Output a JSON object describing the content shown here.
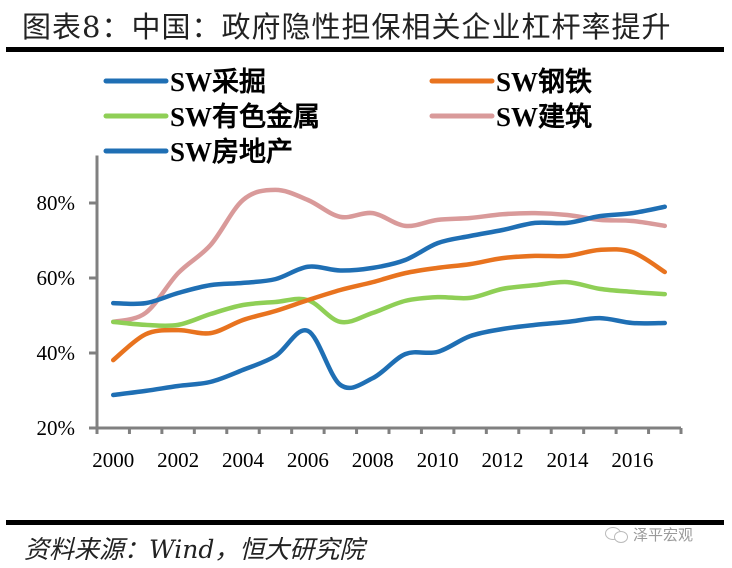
{
  "header": {
    "title": "图表8：中国：政府隐性担保相关企业杠杆率提升"
  },
  "footer": {
    "source": "资料来源：Wind，恒大研究院",
    "watermark_icon": "wechat-icon",
    "watermark": "泽平宏观"
  },
  "chart_data": {
    "type": "line",
    "title": "中国：政府隐性担保相关企业杠杆率提升",
    "xlabel": "",
    "ylabel": "",
    "x": [
      2000,
      2001,
      2002,
      2003,
      2004,
      2005,
      2006,
      2007,
      2008,
      2009,
      2010,
      2011,
      2012,
      2013,
      2014,
      2015,
      2016,
      2017
    ],
    "x_tick_labels": [
      "2000",
      "2002",
      "2004",
      "2006",
      "2008",
      "2010",
      "2012",
      "2014",
      "2016"
    ],
    "y_tick_labels": [
      "20%",
      "40%",
      "60%",
      "80%"
    ],
    "y_ticks": [
      20,
      40,
      60,
      80
    ],
    "ylim": [
      20,
      90
    ],
    "grid": false,
    "legend_position": "top",
    "series": [
      {
        "name": "SW采掘",
        "color": "#1f6fb4",
        "values": [
          53.3,
          53.3,
          56.0,
          58.1,
          58.7,
          59.7,
          63.0,
          62.0,
          62.7,
          64.8,
          69.3,
          71.2,
          72.8,
          74.7,
          74.7,
          76.5,
          77.3,
          79.0
        ]
      },
      {
        "name": "SW钢铁",
        "color": "#e8731f",
        "values": [
          38.1,
          45.0,
          46.1,
          45.3,
          48.8,
          51.2,
          54.1,
          56.8,
          58.9,
          61.3,
          62.7,
          63.7,
          65.3,
          65.9,
          65.9,
          67.5,
          66.9,
          61.6
        ]
      },
      {
        "name": "SW有色金属",
        "color": "#8fcf56",
        "values": [
          48.3,
          47.5,
          47.5,
          50.4,
          52.8,
          53.6,
          54.1,
          48.3,
          50.7,
          53.9,
          54.9,
          54.7,
          57.1,
          58.1,
          58.9,
          57.1,
          56.3,
          55.7
        ]
      },
      {
        "name": "SW建筑",
        "color": "#d99a9a",
        "values": [
          48.3,
          50.7,
          61.3,
          68.8,
          80.8,
          83.5,
          80.8,
          76.3,
          77.3,
          73.9,
          75.5,
          76.0,
          77.0,
          77.3,
          76.8,
          75.5,
          75.2,
          73.9
        ]
      },
      {
        "name": "SW房地产",
        "color": "#1f6fb4",
        "values": [
          28.8,
          29.9,
          31.2,
          32.3,
          35.5,
          39.2,
          45.9,
          31.5,
          33.3,
          39.7,
          40.3,
          44.5,
          46.4,
          47.5,
          48.3,
          49.3,
          48.0,
          48.0
        ]
      }
    ]
  }
}
